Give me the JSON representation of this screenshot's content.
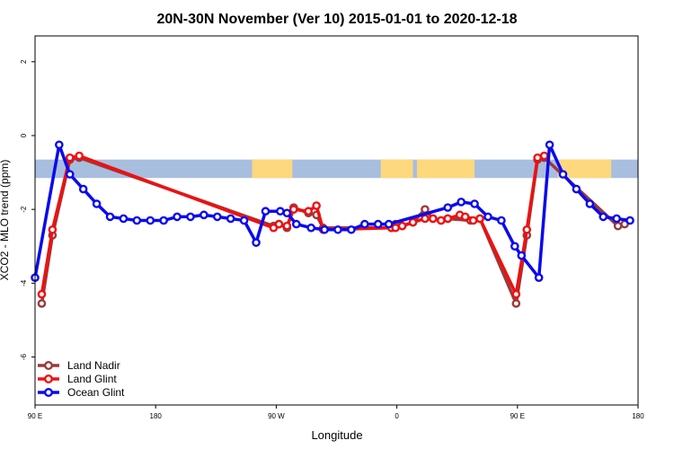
{
  "chart_data": {
    "type": "line",
    "title": "20N-30N November (Ver 10)   2015-01-01 to 2020-12-18",
    "xlabel": "Longitude",
    "ylabel": "XCO2 - MLO trend (ppm)",
    "xlim": [
      90,
      540
    ],
    "ylim": [
      -7.3,
      2.7
    ],
    "x_ticks": [
      {
        "value": 90,
        "label": "90 E"
      },
      {
        "value": 180,
        "label": "180"
      },
      {
        "value": 270,
        "label": "90 W"
      },
      {
        "value": 360,
        "label": "0"
      },
      {
        "value": 450,
        "label": "90 E"
      },
      {
        "value": 540,
        "label": "180"
      }
    ],
    "y_ticks": [
      {
        "value": 2,
        "label": "2"
      },
      {
        "value": 0,
        "label": "0"
      },
      {
        "value": -2,
        "label": "-2"
      },
      {
        "value": -4,
        "label": "-4"
      },
      {
        "value": -6,
        "label": "-6"
      }
    ],
    "map_band": {
      "y_top": -0.65,
      "y_bottom": -1.15,
      "ocean_color": "#a8bedf",
      "land_color": "#fdd87c",
      "land_spans": [
        [
          252,
          282
        ],
        [
          348,
          372
        ],
        [
          375,
          418
        ],
        [
          480,
          520
        ]
      ]
    },
    "legend": {
      "position": "bottom-left"
    },
    "series": [
      {
        "name": "Land Nadir",
        "color": "#9a3a3a",
        "x": [
          95,
          103,
          116,
          123,
          268,
          272,
          278,
          283,
          294,
          300,
          305,
          356,
          359,
          364,
          372,
          381,
          387,
          393,
          398,
          415,
          422,
          449,
          457,
          465,
          470,
          525,
          530
        ],
        "y": [
          -4.55,
          -2.7,
          -0.65,
          -0.6,
          -2.45,
          -2.4,
          -2.5,
          -1.95,
          -2.1,
          -2.15,
          -2.5,
          -2.5,
          -2.4,
          -2.45,
          -2.35,
          -2.0,
          -2.25,
          -2.3,
          -2.25,
          -2.3,
          -2.25,
          -4.55,
          -2.7,
          -0.65,
          -0.6,
          -2.45,
          -2.4
        ]
      },
      {
        "name": "Land Glint",
        "color": "#ee1111",
        "x": [
          95,
          103,
          116,
          123,
          268,
          272,
          278,
          283,
          294,
          300,
          305,
          356,
          359,
          364,
          372,
          381,
          387,
          393,
          398,
          407,
          411,
          417,
          422,
          449,
          457,
          465,
          470
        ],
        "y": [
          -4.3,
          -2.55,
          -0.6,
          -0.55,
          -2.5,
          -2.4,
          -2.45,
          -2.0,
          -2.05,
          -1.9,
          -2.55,
          -2.5,
          -2.5,
          -2.45,
          -2.35,
          -2.25,
          -2.25,
          -2.3,
          -2.25,
          -2.15,
          -2.2,
          -2.3,
          -2.25,
          -4.3,
          -2.55,
          -0.6,
          -0.55
        ]
      },
      {
        "name": "Ocean Glint",
        "color": "#0a0aee",
        "x": [
          90,
          108,
          116,
          126,
          136,
          146,
          156,
          166,
          176,
          186,
          196,
          206,
          216,
          226,
          236,
          246,
          255,
          262,
          273,
          278,
          285,
          296,
          306,
          316,
          326,
          336,
          346,
          354,
          398,
          408,
          418,
          428,
          438,
          448,
          453,
          466,
          474,
          484,
          494,
          504,
          514,
          524,
          534
        ],
        "y": [
          -3.85,
          -0.25,
          -1.05,
          -1.45,
          -1.85,
          -2.2,
          -2.25,
          -2.3,
          -2.3,
          -2.3,
          -2.2,
          -2.2,
          -2.15,
          -2.2,
          -2.25,
          -2.3,
          -2.9,
          -2.05,
          -2.05,
          -2.1,
          -2.4,
          -2.5,
          -2.55,
          -2.55,
          -2.55,
          -2.4,
          -2.4,
          -2.4,
          -1.95,
          -1.8,
          -1.85,
          -2.2,
          -2.3,
          -3.0,
          -3.25,
          -3.85,
          -0.25,
          -1.05,
          -1.45,
          -1.85,
          -2.2,
          -2.25,
          -2.3
        ]
      }
    ]
  }
}
